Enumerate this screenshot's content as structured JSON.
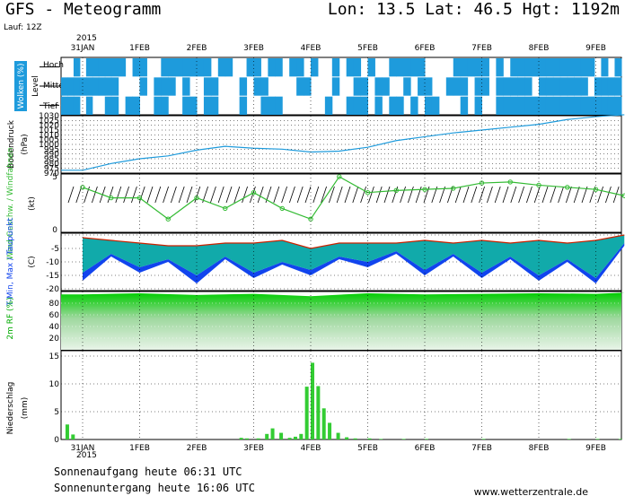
{
  "header": {
    "title": "GFS - Meteogramm",
    "location": "Lon: 13.5 Lat: 46.5 Hgt: 1192m",
    "run": "Lauf: 12Z",
    "year": "2015"
  },
  "footer": {
    "sunrise": "Sonnenaufgang heute 06:31 UTC",
    "sunset": "Sonnenuntergang heute 16:06 UTC",
    "source": "www.wetterzentrale.de"
  },
  "colors": {
    "cloud": "#1e9bdc",
    "pressure": "#1e9bdc",
    "wind": "#33bb33",
    "tmax": "#cc2200",
    "tmin": "#1144ee",
    "dewpoint": "#11aaaa",
    "rh_top": "#00dd00",
    "precip": "#33cc33"
  },
  "chart_data": [
    {
      "type": "heatmap",
      "name": "clouds",
      "ylabel": "Wolken (%)",
      "level_axis": "Level",
      "rows": [
        "Hoch",
        "Mittel",
        "Tief"
      ],
      "x": [
        "31JAN",
        "1FEB",
        "2FEB",
        "3FEB",
        "4FEB",
        "5FEB",
        "6FEB",
        "7FEB",
        "8FEB",
        "9FEB"
      ],
      "cover_pct": {
        "Hoch": [
          70,
          65,
          70,
          60,
          65,
          55,
          60,
          80,
          95,
          90
        ],
        "Mittel": [
          60,
          55,
          50,
          40,
          45,
          50,
          45,
          75,
          95,
          90
        ],
        "Tief": [
          55,
          60,
          50,
          45,
          20,
          60,
          55,
          80,
          95,
          95
        ]
      }
    },
    {
      "type": "line",
      "name": "pressure",
      "ylabel": "Bodendruck",
      "unit": "(hPa)",
      "ylim": [
        970,
        1030
      ],
      "yticks": [
        970,
        975,
        980,
        985,
        990,
        995,
        1000,
        1005,
        1010,
        1015,
        1020,
        1025,
        1030
      ],
      "x_days": [
        0,
        0.5,
        1,
        1.5,
        2,
        2.5,
        3,
        3.5,
        4,
        4.5,
        5,
        5.5,
        6,
        6.5,
        7,
        7.5,
        8,
        8.5,
        9,
        9.5
      ],
      "values": [
        973,
        980,
        985,
        988,
        994,
        998,
        996,
        995,
        992,
        993,
        997,
        1004,
        1008,
        1012,
        1015,
        1018,
        1021,
        1026,
        1029,
        1031
      ]
    },
    {
      "type": "line",
      "name": "wind",
      "ylabel": "Wind Geschw. / Windfahnen",
      "unit": "(kt)",
      "ylim": [
        0,
        5
      ],
      "yticks": [
        0,
        5
      ],
      "x_days": [
        0,
        0.5,
        1,
        1.5,
        2,
        2.5,
        3,
        3.5,
        4,
        4.5,
        5,
        5.5,
        6,
        6.5,
        7,
        7.5,
        8,
        8.5,
        9,
        9.5
      ],
      "values": [
        4,
        3,
        3,
        1,
        3,
        2,
        3.5,
        2,
        1,
        5,
        3.5,
        3.7,
        3.8,
        3.9,
        4.4,
        4.5,
        4.2,
        4.0,
        3.8,
        3.2
      ]
    },
    {
      "type": "area",
      "name": "temperature",
      "ylabel": "T-Min, Max / Taupunkt",
      "unit": "(C)",
      "ylim": [
        -20,
        0
      ],
      "yticks": [
        -5,
        -10,
        -15,
        -20
      ],
      "x_days": [
        0,
        0.5,
        1,
        1.5,
        2,
        2.5,
        3,
        3.5,
        4,
        4.5,
        5,
        5.5,
        6,
        6.5,
        7,
        7.5,
        8,
        8.5,
        9,
        9.5
      ],
      "tmax": [
        -1,
        -2,
        -3,
        -4,
        -4,
        -3,
        -3,
        -2,
        -5,
        -3,
        -3,
        -3,
        -2,
        -3,
        -2,
        -3,
        -2,
        -3,
        -2,
        0
      ],
      "tmin": [
        -17,
        -8,
        -14,
        -10,
        -18,
        -9,
        -16,
        -11,
        -15,
        -9,
        -12,
        -7,
        -15,
        -8,
        -16,
        -9,
        -17,
        -10,
        -18,
        -4
      ],
      "dewpoint": [
        -14,
        -7,
        -12,
        -9,
        -15,
        -8,
        -14,
        -10,
        -13,
        -8,
        -10,
        -6,
        -13,
        -7,
        -14,
        -8,
        -15,
        -9,
        -16,
        -3
      ]
    },
    {
      "type": "area",
      "name": "humidity",
      "ylabel": "2m RF (%)",
      "ylim": [
        0,
        100
      ],
      "yticks": [
        20,
        40,
        60,
        80
      ],
      "x_days": [
        0,
        1,
        2,
        3,
        4,
        5,
        6,
        7,
        8,
        9,
        9.5
      ],
      "values": [
        95,
        97,
        94,
        96,
        92,
        97,
        95,
        96,
        97,
        96,
        98
      ]
    },
    {
      "type": "bar",
      "name": "precipitation",
      "ylabel": "Niederschlag",
      "unit": "(mm)",
      "ylim": [
        0,
        15
      ],
      "yticks": [
        0,
        5,
        10,
        15
      ],
      "x_days": [
        -0.3,
        -0.2,
        2.75,
        2.85,
        3.05,
        3.2,
        3.3,
        3.45,
        3.6,
        3.7,
        3.8,
        3.9,
        4.0,
        4.1,
        4.2,
        4.3,
        4.45,
        4.6,
        4.75,
        5.0,
        5.2,
        5.6,
        6.0,
        7.0,
        8.5,
        9.0,
        9.4
      ],
      "values": [
        2.7,
        0.9,
        0.3,
        0.2,
        0.2,
        1.0,
        2.0,
        1.2,
        0.3,
        0.5,
        1.0,
        9.5,
        13.8,
        9.6,
        5.6,
        3.0,
        1.2,
        0.4,
        0.2,
        0.2,
        0.1,
        0.1,
        0.1,
        0.1,
        0.1,
        0.1,
        0.1
      ]
    }
  ],
  "xaxis": {
    "labels": [
      "31JAN",
      "1FEB",
      "2FEB",
      "3FEB",
      "4FEB",
      "5FEB",
      "6FEB",
      "7FEB",
      "8FEB",
      "9FEB"
    ]
  }
}
